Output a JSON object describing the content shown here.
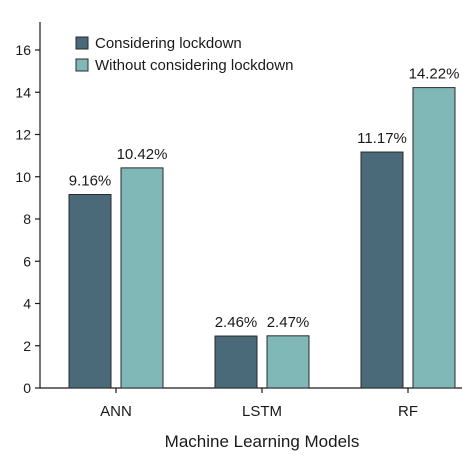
{
  "chart_data": {
    "type": "bar",
    "categories": [
      "ANN",
      "LSTM",
      "RF"
    ],
    "series": [
      {
        "name": "Considering lockdown",
        "values": [
          9.16,
          2.46,
          11.17
        ],
        "labels": [
          "9.16%",
          "2.46%",
          "11.17%"
        ],
        "color": "#4a6a79"
      },
      {
        "name": "Without considering lockdown",
        "values": [
          10.42,
          2.47,
          14.22
        ],
        "labels": [
          "10.42%",
          "2.47%",
          "14.22%"
        ],
        "color": "#80b8b8"
      }
    ],
    "title": "",
    "xlabel": "Machine Learning Models",
    "ylabel": "",
    "ylim": [
      0,
      17
    ],
    "yticks": [
      "0",
      "2",
      "4",
      "6",
      "8",
      "10",
      "12",
      "14",
      "16"
    ],
    "grid": false,
    "legend_position": "top-left"
  }
}
